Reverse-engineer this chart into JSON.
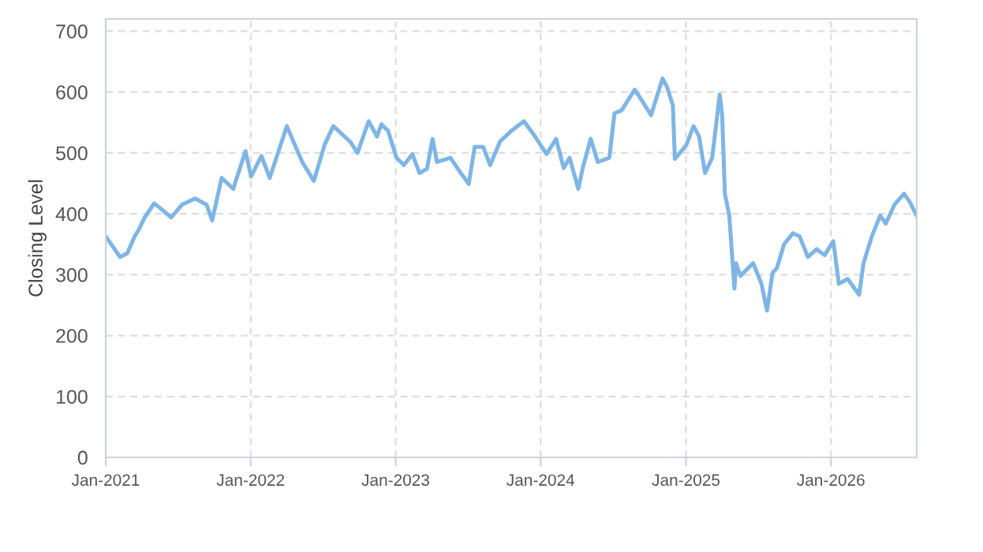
{
  "chart_data": {
    "type": "line",
    "ylabel": "Closing Level",
    "xlim": [
      "2021-01-01",
      "2026-08-05"
    ],
    "ylim": [
      0,
      720
    ],
    "xticks": [
      {
        "value": "2021-01-01",
        "label": "Jan-2021"
      },
      {
        "value": "2022-01-01",
        "label": "Jan-2022"
      },
      {
        "value": "2023-01-01",
        "label": "Jan-2023"
      },
      {
        "value": "2024-01-01",
        "label": "Jan-2024"
      },
      {
        "value": "2025-01-01",
        "label": "Jan-2025"
      },
      {
        "value": "2026-01-01",
        "label": "Jan-2026"
      }
    ],
    "yticks": [
      0,
      100,
      200,
      300,
      400,
      500,
      600,
      700
    ],
    "grid": true,
    "marker": "none",
    "line_style": "solid",
    "x": [
      "2021-01-01",
      "2021-02-06",
      "2021-02-24",
      "2021-03-15",
      "2021-03-26",
      "2021-04-09",
      "2021-05-03",
      "2021-05-17",
      "2021-06-15",
      "2021-07-12",
      "2021-08-14",
      "2021-09-12",
      "2021-09-26",
      "2021-10-20",
      "2021-11-18",
      "2021-12-19",
      "2022-01-02",
      "2022-01-28",
      "2022-02-18",
      "2022-04-02",
      "2022-05-11",
      "2022-06-09",
      "2022-07-06",
      "2022-07-28",
      "2022-09-09",
      "2022-09-27",
      "2022-10-25",
      "2022-11-15",
      "2022-11-26",
      "2022-12-13",
      "2023-01-03",
      "2023-01-22",
      "2023-02-12",
      "2023-03-02",
      "2023-03-21",
      "2023-04-04",
      "2023-04-15",
      "2023-05-19",
      "2023-06-14",
      "2023-07-04",
      "2023-07-19",
      "2023-08-09",
      "2023-08-27",
      "2023-09-21",
      "2023-10-19",
      "2023-11-20",
      "2023-12-18",
      "2024-01-16",
      "2024-02-09",
      "2024-02-28",
      "2024-03-14",
      "2024-04-05",
      "2024-04-16",
      "2024-05-06",
      "2024-05-24",
      "2024-06-22",
      "2024-07-05",
      "2024-07-23",
      "2024-08-25",
      "2024-09-15",
      "2024-10-05",
      "2024-11-03",
      "2024-11-14",
      "2024-11-29",
      "2024-12-04",
      "2025-01-02",
      "2025-01-20",
      "2025-02-03",
      "2025-02-18",
      "2025-03-08",
      "2025-03-27",
      "2025-04-02",
      "2025-04-09",
      "2025-04-20",
      "2025-05-03",
      "2025-05-07",
      "2025-05-18",
      "2025-06-19",
      "2025-07-10",
      "2025-07-24",
      "2025-08-07",
      "2025-08-18",
      "2025-09-05",
      "2025-09-27",
      "2025-10-14",
      "2025-11-04",
      "2025-11-26",
      "2025-12-16",
      "2026-01-07",
      "2026-01-21",
      "2026-02-12",
      "2026-03-13",
      "2026-03-24",
      "2026-04-14",
      "2026-05-05",
      "2026-05-19",
      "2026-06-10",
      "2026-07-04",
      "2026-07-18",
      "2026-08-05"
    ],
    "series": [
      {
        "color": "#7eb5e6",
        "values": [
          363,
          329,
          335,
          363,
          375,
          394,
          417,
          410,
          394,
          415,
          425,
          415,
          389,
          459,
          441,
          503,
          461,
          495,
          459,
          544,
          485,
          454,
          513,
          544,
          518,
          500,
          552,
          527,
          547,
          536,
          492,
          480,
          498,
          467,
          474,
          523,
          485,
          492,
          467,
          449,
          510,
          510,
          480,
          519,
          536,
          552,
          527,
          498,
          523,
          475,
          492,
          441,
          475,
          523,
          485,
          492,
          565,
          570,
          604,
          583,
          562,
          622,
          609,
          578,
          490,
          513,
          544,
          527,
          467,
          492,
          596,
          562,
          433,
          397,
          277,
          319,
          298,
          319,
          285,
          241,
          303,
          311,
          350,
          368,
          363,
          329,
          342,
          332,
          355,
          285,
          293,
          267,
          319,
          363,
          397,
          384,
          415,
          433,
          420,
          397
        ]
      }
    ]
  }
}
